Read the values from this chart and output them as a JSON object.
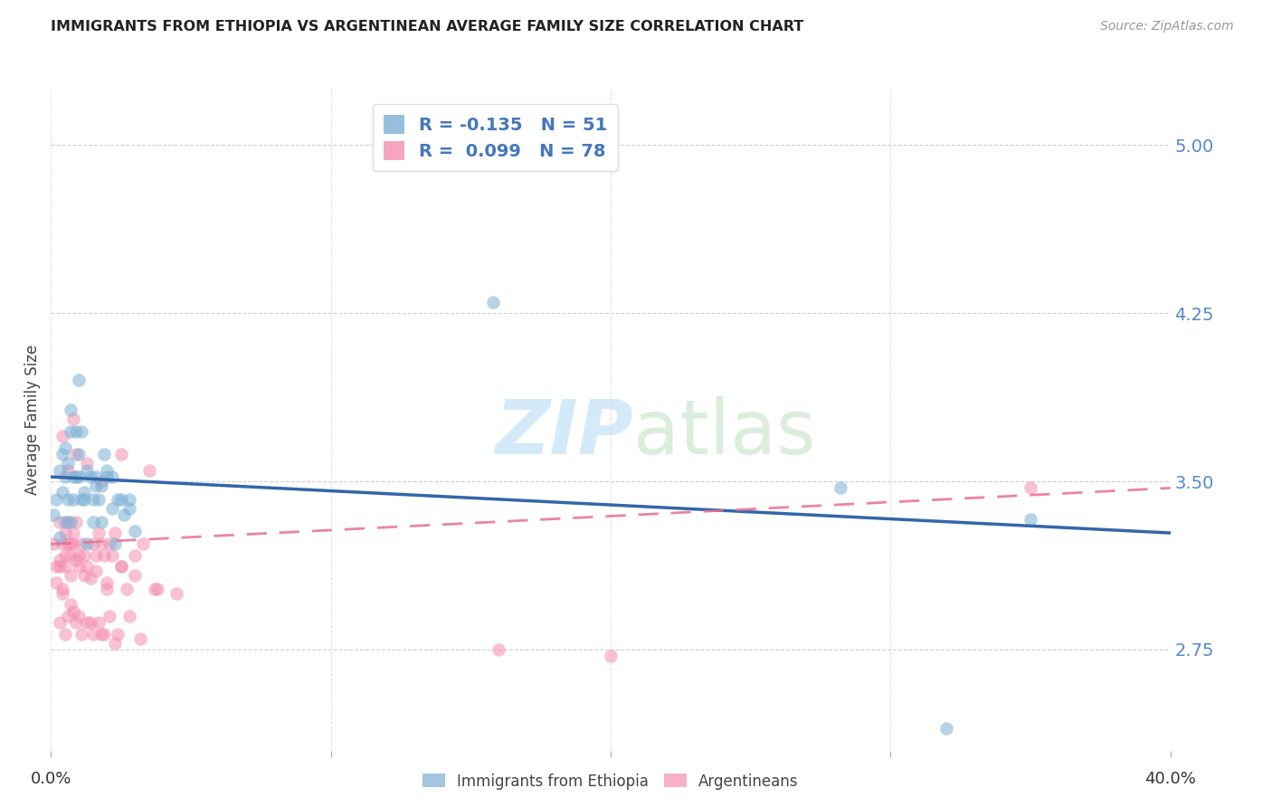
{
  "title": "IMMIGRANTS FROM ETHIOPIA VS ARGENTINEAN AVERAGE FAMILY SIZE CORRELATION CHART",
  "source": "Source: ZipAtlas.com",
  "ylabel": "Average Family Size",
  "yticks": [
    2.75,
    3.5,
    4.25,
    5.0
  ],
  "xlim": [
    0.0,
    0.4
  ],
  "ylim": [
    2.3,
    5.25
  ],
  "blue_color": "#7BAFD4",
  "pink_color": "#F48FB1",
  "blue_line_color": "#3366AA",
  "pink_line_color": "#E87090",
  "legend_R1": "-0.135",
  "legend_N1": "51",
  "legend_R2": "0.099",
  "legend_N2": "78",
  "ethiopia_scatter_x": [
    0.001,
    0.002,
    0.003,
    0.003,
    0.004,
    0.004,
    0.005,
    0.005,
    0.005,
    0.006,
    0.006,
    0.007,
    0.007,
    0.007,
    0.008,
    0.008,
    0.009,
    0.009,
    0.01,
    0.01,
    0.011,
    0.011,
    0.012,
    0.013,
    0.014,
    0.015,
    0.015,
    0.016,
    0.017,
    0.018,
    0.019,
    0.02,
    0.022,
    0.023,
    0.025,
    0.028,
    0.01,
    0.012,
    0.013,
    0.016,
    0.018,
    0.02,
    0.022,
    0.024,
    0.026,
    0.028,
    0.03,
    0.158,
    0.282,
    0.35,
    0.32
  ],
  "ethiopia_scatter_y": [
    3.35,
    3.42,
    3.25,
    3.55,
    3.62,
    3.45,
    3.32,
    3.52,
    3.65,
    3.42,
    3.58,
    3.32,
    3.72,
    3.82,
    3.52,
    3.42,
    3.72,
    3.52,
    3.52,
    3.62,
    3.42,
    3.72,
    3.42,
    3.22,
    3.52,
    3.42,
    3.32,
    3.52,
    3.42,
    3.32,
    3.62,
    3.52,
    3.52,
    3.22,
    3.42,
    3.42,
    3.95,
    3.45,
    3.55,
    3.48,
    3.48,
    3.55,
    3.38,
    3.42,
    3.35,
    3.38,
    3.28,
    4.3,
    3.47,
    3.33,
    2.4
  ],
  "argentina_scatter_x": [
    0.001,
    0.002,
    0.002,
    0.003,
    0.003,
    0.004,
    0.004,
    0.005,
    0.005,
    0.006,
    0.006,
    0.007,
    0.007,
    0.008,
    0.008,
    0.009,
    0.01,
    0.01,
    0.011,
    0.012,
    0.013,
    0.014,
    0.015,
    0.016,
    0.017,
    0.018,
    0.019,
    0.02,
    0.021,
    0.022,
    0.023,
    0.025,
    0.027,
    0.03,
    0.033,
    0.037,
    0.003,
    0.005,
    0.006,
    0.008,
    0.009,
    0.011,
    0.013,
    0.015,
    0.017,
    0.019,
    0.021,
    0.024,
    0.028,
    0.032,
    0.004,
    0.007,
    0.01,
    0.014,
    0.018,
    0.023,
    0.003,
    0.005,
    0.007,
    0.009,
    0.012,
    0.016,
    0.02,
    0.025,
    0.03,
    0.038,
    0.045,
    0.006,
    0.009,
    0.013,
    0.018,
    0.025,
    0.035,
    0.35,
    0.004,
    0.008,
    0.2,
    0.16
  ],
  "argentina_scatter_y": [
    3.22,
    3.05,
    3.12,
    3.32,
    3.12,
    3.22,
    3.02,
    3.27,
    3.17,
    3.32,
    3.22,
    3.22,
    3.17,
    3.27,
    3.22,
    3.32,
    3.17,
    3.12,
    3.22,
    3.17,
    3.12,
    3.07,
    3.22,
    3.17,
    3.27,
    3.22,
    3.17,
    3.02,
    3.22,
    3.17,
    3.27,
    3.12,
    3.02,
    3.17,
    3.22,
    3.02,
    2.87,
    2.82,
    2.9,
    2.92,
    2.87,
    2.82,
    2.87,
    2.82,
    2.87,
    2.82,
    2.9,
    2.82,
    2.9,
    2.8,
    3.0,
    2.95,
    2.9,
    2.87,
    2.82,
    2.78,
    3.15,
    3.12,
    3.08,
    3.15,
    3.08,
    3.1,
    3.05,
    3.12,
    3.08,
    3.02,
    3.0,
    3.55,
    3.62,
    3.58,
    3.5,
    3.62,
    3.55,
    3.47,
    3.7,
    3.78,
    2.72,
    2.75
  ],
  "eth_trend_x": [
    0.0,
    0.4
  ],
  "eth_trend_y": [
    3.52,
    3.27
  ],
  "arg_trend_x": [
    0.0,
    0.4
  ],
  "arg_trend_y": [
    3.22,
    3.47
  ]
}
